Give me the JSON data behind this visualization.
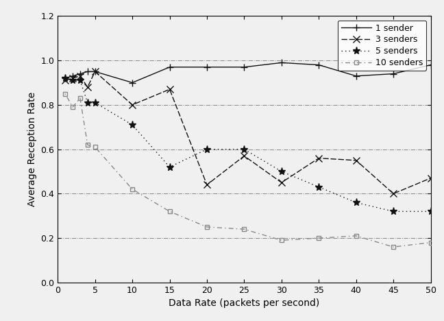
{
  "title": "",
  "xlabel": "Data Rate (packets per second)",
  "ylabel": "Average Reception Rate",
  "xlim": [
    0,
    50
  ],
  "ylim": [
    0,
    1.2
  ],
  "yticks": [
    0,
    0.2,
    0.4,
    0.6,
    0.8,
    1.0,
    1.2
  ],
  "xticks": [
    0,
    5,
    10,
    15,
    20,
    25,
    30,
    35,
    40,
    45,
    50
  ],
  "grid_y": [
    0.2,
    0.4,
    0.6,
    0.8,
    1.0,
    1.2
  ],
  "series": [
    {
      "label": "1 sender",
      "x": [
        1,
        2,
        3,
        4,
        5,
        10,
        15,
        20,
        25,
        30,
        35,
        40,
        45,
        50
      ],
      "y": [
        0.92,
        0.93,
        0.94,
        0.95,
        0.95,
        0.9,
        0.97,
        0.97,
        0.97,
        0.99,
        0.98,
        0.93,
        0.94,
        0.98
      ],
      "linestyle": "-",
      "marker": "+",
      "color": "#111111",
      "linewidth": 1.0,
      "markersize": 7,
      "markerfacecolor": "#111111",
      "dashes": []
    },
    {
      "label": "3 senders",
      "x": [
        1,
        2,
        3,
        4,
        5,
        10,
        15,
        20,
        25,
        30,
        35,
        40,
        45,
        50
      ],
      "y": [
        0.91,
        0.92,
        0.93,
        0.88,
        0.95,
        0.8,
        0.87,
        0.44,
        0.57,
        0.45,
        0.56,
        0.55,
        0.4,
        0.47
      ],
      "linestyle": "--",
      "marker": "x",
      "color": "#111111",
      "linewidth": 1.0,
      "markersize": 7,
      "markerfacecolor": "#111111",
      "dashes": [
        6,
        2
      ]
    },
    {
      "label": "5 senders",
      "x": [
        1,
        2,
        3,
        4,
        5,
        10,
        15,
        20,
        25,
        30,
        35,
        40,
        45,
        50
      ],
      "y": [
        0.92,
        0.91,
        0.91,
        0.81,
        0.81,
        0.71,
        0.52,
        0.6,
        0.6,
        0.5,
        0.43,
        0.36,
        0.32,
        0.32
      ],
      "linestyle": ":",
      "marker": "*",
      "color": "#111111",
      "linewidth": 1.0,
      "markersize": 8,
      "markerfacecolor": "#111111",
      "dashes": [
        1,
        3
      ]
    },
    {
      "label": "10 senders",
      "x": [
        1,
        2,
        3,
        4,
        5,
        10,
        15,
        20,
        25,
        30,
        35,
        40,
        45,
        50
      ],
      "y": [
        0.85,
        0.79,
        0.83,
        0.62,
        0.61,
        0.42,
        0.32,
        0.25,
        0.24,
        0.19,
        0.2,
        0.21,
        0.16,
        0.18
      ],
      "linestyle": "-.",
      "marker": "s",
      "color": "#888888",
      "linewidth": 1.0,
      "markersize": 5,
      "markerfacecolor": "none",
      "dashes": [
        1,
        3,
        4,
        3
      ]
    }
  ],
  "legend_loc": "upper right",
  "background_color": "#f0f0f0",
  "plot_bg_color": "#f0f0f0"
}
